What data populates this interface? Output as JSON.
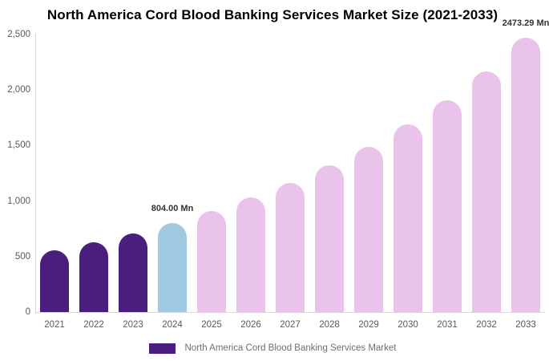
{
  "chart_data": {
    "type": "bar",
    "title": "North America Cord Blood Banking Services Market Size (2021-2033)",
    "unit": "Mn",
    "categories": [
      "2021",
      "2022",
      "2023",
      "2024",
      "2025",
      "2026",
      "2027",
      "2028",
      "2029",
      "2030",
      "2031",
      "2032",
      "2033"
    ],
    "values": [
      553,
      632,
      711,
      804,
      910,
      1030,
      1165,
      1320,
      1490,
      1690,
      1910,
      2170,
      2473.29
    ],
    "groups": [
      "historical",
      "historical",
      "historical",
      "base_year",
      "forecast",
      "forecast",
      "forecast",
      "forecast",
      "forecast",
      "forecast",
      "forecast",
      "forecast",
      "forecast"
    ],
    "colors": {
      "historical": "#4A1E7C",
      "base_year": "#A0C9E2",
      "forecast": "#E9C3E9"
    },
    "data_labels": [
      {
        "index": 3,
        "text": "804.00 Mn"
      },
      {
        "index": 12,
        "text": "2473.29 Mn"
      }
    ],
    "ylim": [
      0,
      2500
    ],
    "yticks": [
      {
        "value": 0,
        "label": "0"
      },
      {
        "value": 500,
        "label": "500"
      },
      {
        "value": 1000,
        "label": "1,000"
      },
      {
        "value": 1500,
        "label": "1,500"
      },
      {
        "value": 2000,
        "label": "2,000"
      },
      {
        "value": 2500,
        "label": "2,500"
      }
    ],
    "grid": false,
    "legend": {
      "label": "North America Cord Blood Banking Services Market",
      "swatch_color": "#4A1E7C",
      "position": "bottom"
    },
    "axis_color": "#d9d9d9"
  }
}
